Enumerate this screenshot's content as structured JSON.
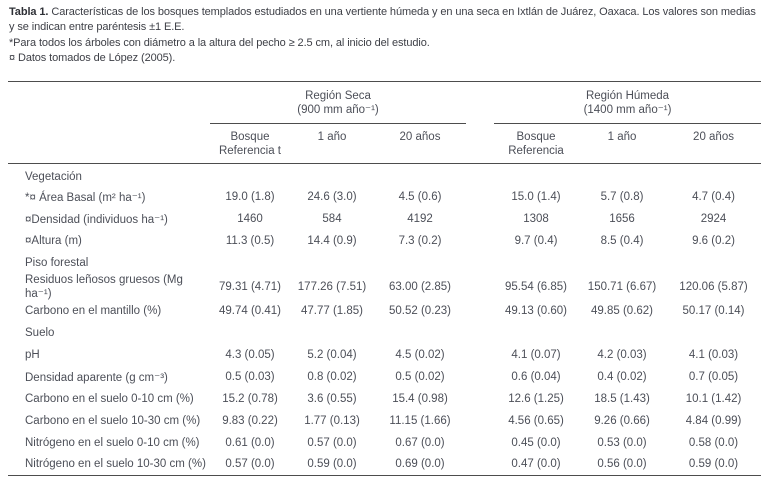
{
  "caption": {
    "label": "Tabla 1.",
    "text": "Características de los bosques templados estudiados en una vertiente húmeda y en una seca en Ixtlán de Juárez, Oaxaca. Los valores son medias y se indican entre paréntesis ±1 E.E.",
    "footnote_dbh": "*Para todos los árboles con diámetro a la altura del pecho ≥ 2.5 cm, al inicio del estudio.",
    "footnote_lopez": "¤ Datos tomados de López (2005)."
  },
  "table": {
    "groups": [
      {
        "title": "Región Seca",
        "subtitle": "(900 mm año⁻¹)"
      },
      {
        "title": "Región Húmeda",
        "subtitle": "(1400 mm año⁻¹)"
      }
    ],
    "subheaders": [
      "Bosque Referencia t",
      "1 año",
      "20 años",
      "Bosque Referencia",
      "1 año",
      "20 años"
    ],
    "rows": [
      {
        "type": "section",
        "label": "Vegetación"
      },
      {
        "type": "data",
        "label": "*¤ Área Basal (m² ha⁻¹)",
        "values": [
          "19.0 (1.8)",
          "24.6 (3.0)",
          "4.5 (0.6)",
          "15.0 (1.4)",
          "5.7 (0.8)",
          "4.7 (0.4)"
        ]
      },
      {
        "type": "data",
        "label": "¤Densidad (individuos ha⁻¹)",
        "values": [
          "1460",
          "584",
          "4192",
          "1308",
          "1656",
          "2924"
        ]
      },
      {
        "type": "data",
        "label": "¤Altura (m)",
        "values": [
          "11.3 (0.5)",
          "14.4 (0.9)",
          "7.3 (0.2)",
          "9.7 (0.4)",
          "8.5 (0.4)",
          "9.6 (0.2)"
        ]
      },
      {
        "type": "section",
        "label": "Piso forestal"
      },
      {
        "type": "data",
        "label": "Residuos leñosos gruesos (Mg ha⁻¹)",
        "values": [
          "79.31 (4.71)",
          "177.26 (7.51)",
          "63.00 (2.85)",
          "95.54 (6.85)",
          "150.71 (6.67)",
          "120.06 (5.87)"
        ]
      },
      {
        "type": "data",
        "label": "Carbono en el mantillo (%)",
        "values": [
          "49.74 (0.41)",
          "47.77 (1.85)",
          "50.52 (0.23)",
          "49.13 (0.60)",
          "49.85 (0.62)",
          "50.17 (0.14)"
        ]
      },
      {
        "type": "section",
        "label": "Suelo"
      },
      {
        "type": "data",
        "label": "pH",
        "values": [
          "4.3 (0.05)",
          "5.2 (0.04)",
          "4.5 (0.02)",
          "4.1 (0.07)",
          "4.2 (0.03)",
          "4.1 (0.03)"
        ]
      },
      {
        "type": "data",
        "label": "Densidad aparente (g cm⁻³)",
        "values": [
          "0.5 (0.03)",
          "0.8 (0.02)",
          "0.5 (0.02)",
          "0.6 (0.04)",
          "0.4 (0.02)",
          "0.7 (0.05)"
        ]
      },
      {
        "type": "data",
        "label": "Carbono en el suelo 0-10 cm (%)",
        "values": [
          "15.2 (0.78)",
          "3.6 (0.55)",
          "15.4 (0.98)",
          "12.6 (1.25)",
          "18.5 (1.43)",
          "10.1 (1.42)"
        ]
      },
      {
        "type": "data",
        "label": "Carbono en el suelo 10-30 cm (%)",
        "values": [
          "9.83 (0.22)",
          "1.77 (0.13)",
          "11.15 (1.66)",
          "4.56 (0.65)",
          "9.26 (0.66)",
          "4.84 (0.99)"
        ]
      },
      {
        "type": "data",
        "label": "Nitrógeno en el suelo 0-10 cm (%)",
        "values": [
          "0.61 (0.0)",
          "0.57 (0.0)",
          "0.67 (0.0)",
          "0.45 (0.0)",
          "0.53 (0.0)",
          "0.58 (0.0)"
        ]
      },
      {
        "type": "data",
        "label": "Nitrógeno en el suelo 10-30 cm (%)",
        "values": [
          "0.57 (0.0)",
          "0.59 (0.0)",
          "0.69 (0.0)",
          "0.47 (0.0)",
          "0.56 (0.0)",
          "0.59 (0.0)"
        ]
      }
    ]
  }
}
